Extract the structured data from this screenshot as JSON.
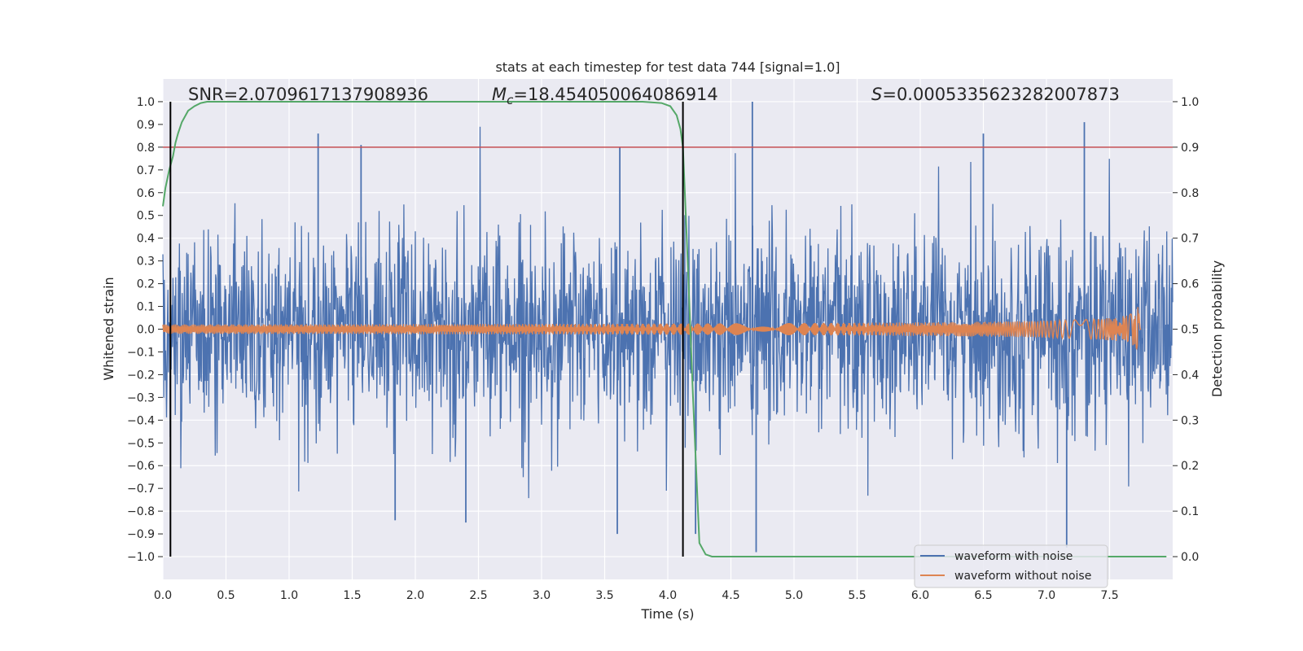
{
  "chart_data": {
    "type": "line",
    "title": "stats at each timestep for test data 744 [signal=1.0]",
    "xlabel": "Time (s)",
    "ylabel": "Whitened strain",
    "ylabel_right": "Detection probability",
    "xlim": [
      0.0,
      8.0
    ],
    "ylim": [
      -1.1,
      1.1
    ],
    "ylim_right": [
      -0.05,
      1.05
    ],
    "x_ticks": [
      "0.0",
      "0.5",
      "1.0",
      "1.5",
      "2.0",
      "2.5",
      "3.0",
      "3.5",
      "4.0",
      "4.5",
      "5.0",
      "5.5",
      "6.0",
      "6.5",
      "7.0",
      "7.5"
    ],
    "y_ticks": [
      "1.0",
      "0.9",
      "0.8",
      "0.7",
      "0.6",
      "0.5",
      "0.4",
      "0.3",
      "0.2",
      "0.1",
      "0.0",
      "-0.1",
      "-0.2",
      "-0.3",
      "-0.4",
      "-0.5",
      "-0.6",
      "-0.7",
      "-0.8",
      "-0.9",
      "-1.0"
    ],
    "y_ticks_right": [
      "1.0",
      "0.9",
      "0.8",
      "0.7",
      "0.6",
      "0.5",
      "0.4",
      "0.3",
      "0.2",
      "0.1",
      "0.0"
    ],
    "grid": true,
    "annotations": {
      "snr": "SNR=2.0709617137908936",
      "mc_symbol": "M",
      "mc_sub": "c",
      "mc_value": "=18.454050064086914",
      "s_symbol": "S",
      "s_value": "=0.0005335623282007873"
    },
    "legend": {
      "placement": "lower-right",
      "entries": [
        "waveform with noise",
        "waveform without noise"
      ]
    },
    "series": [
      {
        "name": "waveform with noise",
        "color": "#4c72b0",
        "kind": "noise",
        "x_range": [
          0.0,
          8.0
        ],
        "typical_envelope": [
          -0.4,
          0.4
        ],
        "peaks_positive": [
          [
            1.23,
            0.86
          ],
          [
            1.57,
            0.81
          ],
          [
            4.67,
            1.0
          ],
          [
            7.3,
            0.91
          ],
          [
            6.5,
            0.86
          ],
          [
            3.62,
            0.8
          ]
        ],
        "peaks_negative": [
          [
            1.84,
            -0.84
          ],
          [
            2.4,
            -0.85
          ],
          [
            3.6,
            -0.9
          ],
          [
            4.22,
            -0.9
          ],
          [
            4.7,
            -0.98
          ],
          [
            7.16,
            -0.96
          ]
        ]
      },
      {
        "name": "waveform without noise",
        "color": "#dd8452",
        "kind": "chirp",
        "x_range": [
          0.0,
          7.75
        ],
        "peak_time": 7.74,
        "peak_amplitude": 0.13
      },
      {
        "name": "detection probability",
        "color": "#55a868",
        "axis": "right",
        "x": [
          0.0,
          0.02,
          0.05,
          0.08,
          0.1,
          0.12,
          0.15,
          0.2,
          0.25,
          0.3,
          0.35,
          0.4,
          0.5,
          1.0,
          2.0,
          3.0,
          3.8,
          3.95,
          4.02,
          4.07,
          4.1,
          4.12,
          4.15,
          4.2,
          4.25,
          4.3,
          4.35,
          4.5,
          7.95
        ],
        "values": [
          0.77,
          0.81,
          0.85,
          0.88,
          0.91,
          0.93,
          0.955,
          0.98,
          0.99,
          0.997,
          1.0,
          1.0,
          1.0,
          1.0,
          1.0,
          1.0,
          1.0,
          0.997,
          0.99,
          0.97,
          0.94,
          0.9,
          0.7,
          0.35,
          0.03,
          0.005,
          0.0,
          0.0,
          0.0
        ]
      }
    ],
    "hlines": [
      {
        "y_right": 0.9,
        "color": "#c44e52"
      }
    ],
    "vlines": [
      {
        "x": 0.06,
        "y_from": -1.0,
        "y_to": 1.0,
        "color": "#000000"
      },
      {
        "x": 4.12,
        "y_from": -1.0,
        "y_to": 1.0,
        "color": "#000000"
      }
    ]
  }
}
